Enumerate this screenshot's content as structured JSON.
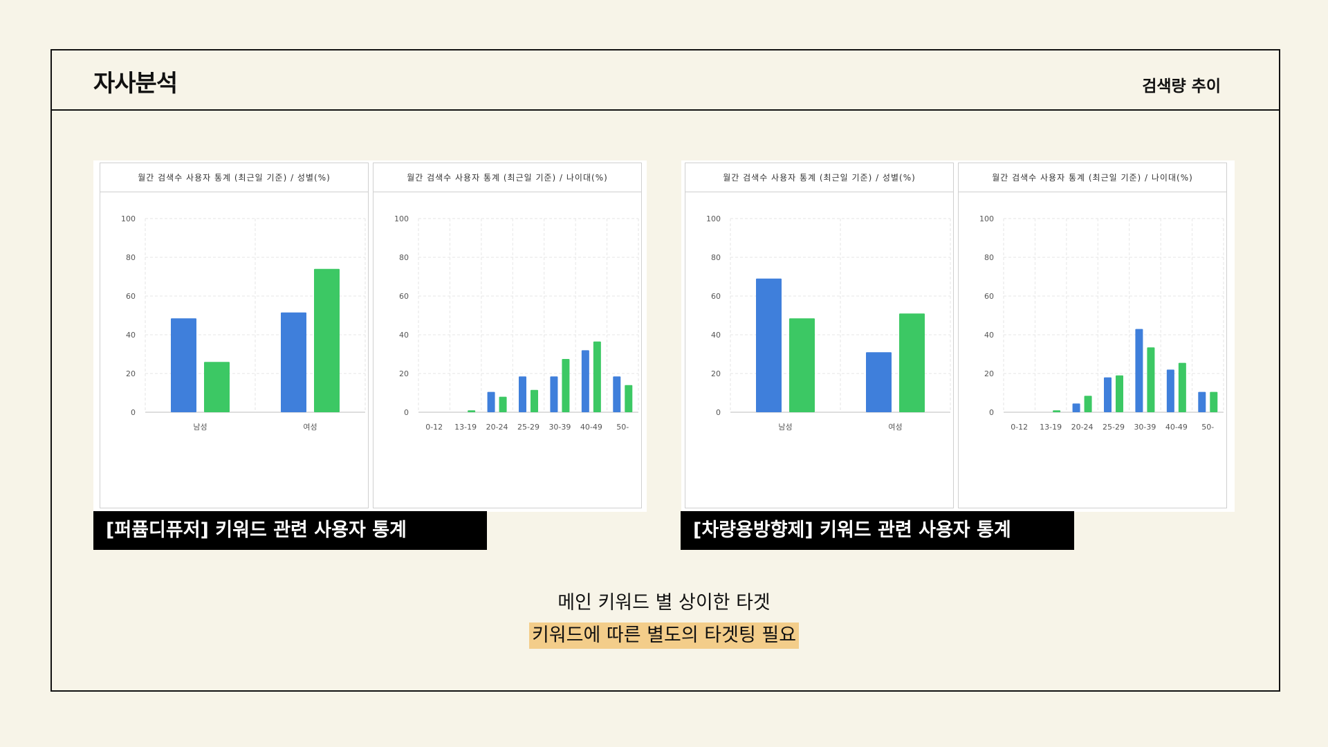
{
  "header": {
    "brand": "자사분석",
    "section_title": "검색량 추이"
  },
  "colors": {
    "blue": "#3f7fdb",
    "green": "#3cc864"
  },
  "chart_data": [
    {
      "type": "bar",
      "title": "월간 검색수 사용자 통계 (최근일 기준) / 성별(%)",
      "categories": [
        "남성",
        "여성"
      ],
      "series": [
        {
          "values": [
            48.5,
            51.5
          ]
        },
        {
          "values": [
            26,
            74
          ]
        }
      ],
      "ylim": [
        0,
        100
      ],
      "yticks": [
        0,
        20,
        40,
        60,
        80,
        100
      ],
      "grid": true
    },
    {
      "type": "bar",
      "title": "월간 검색수 사용자 통계 (최근일 기준) / 나이대(%)",
      "categories": [
        "0-12",
        "13-19",
        "20-24",
        "25-29",
        "30-39",
        "40-49",
        "50-"
      ],
      "series": [
        {
          "values": [
            0,
            0,
            10.5,
            18.5,
            18.5,
            32,
            18.5
          ]
        },
        {
          "values": [
            0,
            1,
            8,
            11.5,
            27.5,
            36.5,
            14
          ]
        }
      ],
      "ylim": [
        0,
        100
      ],
      "yticks": [
        0,
        20,
        40,
        60,
        80,
        100
      ],
      "grid": true
    },
    {
      "type": "bar",
      "title": "월간 검색수 사용자 통계 (최근일 기준) / 성별(%)",
      "categories": [
        "남성",
        "여성"
      ],
      "series": [
        {
          "values": [
            69,
            31
          ]
        },
        {
          "values": [
            48.5,
            51
          ]
        }
      ],
      "ylim": [
        0,
        100
      ],
      "yticks": [
        0,
        20,
        40,
        60,
        80,
        100
      ],
      "grid": true
    },
    {
      "type": "bar",
      "title": "월간 검색수 사용자 통계 (최근일 기준) / 나이대(%)",
      "categories": [
        "0-12",
        "13-19",
        "20-24",
        "25-29",
        "30-39",
        "40-49",
        "50-"
      ],
      "series": [
        {
          "values": [
            0,
            0,
            4.5,
            18,
            43,
            22,
            10.5
          ]
        },
        {
          "values": [
            0,
            1,
            8.5,
            19,
            33.5,
            25.5,
            10.5
          ]
        }
      ],
      "ylim": [
        0,
        100
      ],
      "yticks": [
        0,
        20,
        40,
        60,
        80,
        100
      ],
      "grid": true
    }
  ],
  "captions": [
    "[퍼퓸디퓨저] 키워드 관련 사용자 통계",
    "[차량용방향제] 키워드 관련 사용자 통계"
  ],
  "summary": {
    "line1": "메인 키워드 별 상이한 타겟",
    "line2": "키워드에 따른 별도의 타겟팅 필요"
  }
}
